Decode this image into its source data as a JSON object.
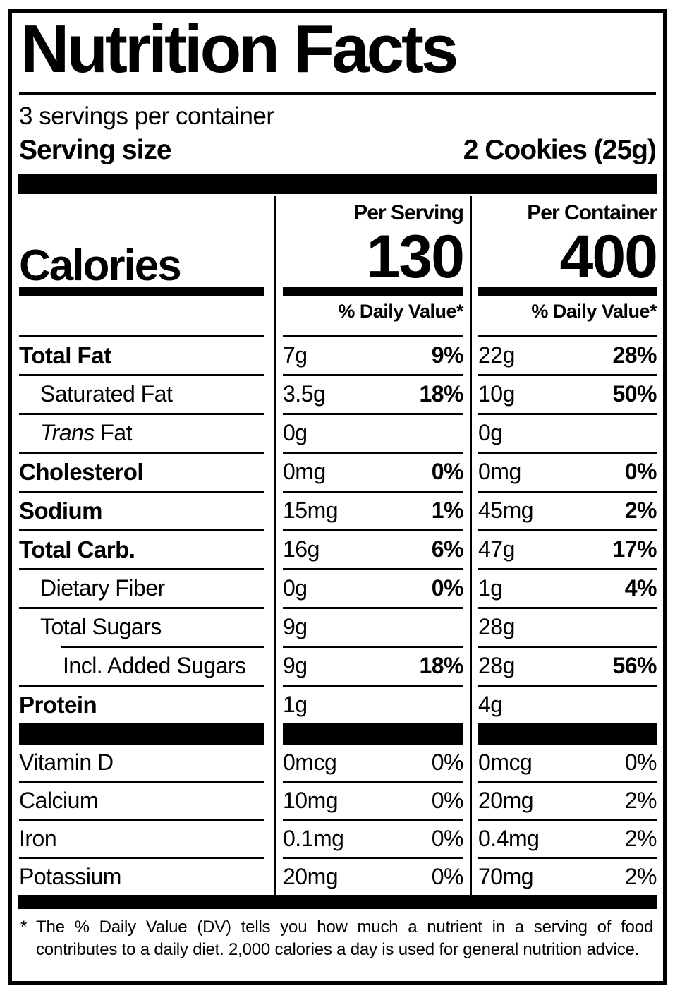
{
  "title": "Nutrition Facts",
  "serving_info": {
    "servings_per_container": "3 servings per container",
    "serving_size_label": "Serving size",
    "serving_size_value": "2 Cookies (25g)"
  },
  "calories_section": {
    "label": "Calories",
    "per_serving_header": "Per Serving",
    "per_container_header": "Per Container",
    "per_serving_calories": "130",
    "per_container_calories": "400",
    "daily_value_header": "% Daily Value*"
  },
  "nutrients": [
    {
      "name": "Total Fat",
      "bold": true,
      "indent": 0,
      "per_serving_amount": "7g",
      "per_serving_dv": "9%",
      "per_container_amount": "22g",
      "per_container_dv": "28%"
    },
    {
      "name": "Saturated Fat",
      "bold": false,
      "indent": 1,
      "per_serving_amount": "3.5g",
      "per_serving_dv": "18%",
      "per_container_amount": "10g",
      "per_container_dv": "50%"
    },
    {
      "name": "Fat",
      "italic_prefix": "Trans",
      "bold": false,
      "indent": 1,
      "per_serving_amount": "0g",
      "per_serving_dv": "",
      "per_container_amount": "0g",
      "per_container_dv": ""
    },
    {
      "name": "Cholesterol",
      "bold": true,
      "indent": 0,
      "per_serving_amount": "0mg",
      "per_serving_dv": "0%",
      "per_container_amount": "0mg",
      "per_container_dv": "0%"
    },
    {
      "name": "Sodium",
      "bold": true,
      "indent": 0,
      "per_serving_amount": "15mg",
      "per_serving_dv": "1%",
      "per_container_amount": "45mg",
      "per_container_dv": "2%"
    },
    {
      "name": "Total Carb.",
      "bold": true,
      "indent": 0,
      "per_serving_amount": "16g",
      "per_serving_dv": "6%",
      "per_container_amount": "47g",
      "per_container_dv": "17%"
    },
    {
      "name": "Dietary Fiber",
      "bold": false,
      "indent": 1,
      "per_serving_amount": "0g",
      "per_serving_dv": "0%",
      "per_container_amount": "1g",
      "per_container_dv": "4%"
    },
    {
      "name": "Total Sugars",
      "bold": false,
      "indent": 1,
      "per_serving_amount": "9g",
      "per_serving_dv": "",
      "per_container_amount": "28g",
      "per_container_dv": "",
      "separator_after_indented": true
    },
    {
      "name": "Incl. Added Sugars",
      "bold": false,
      "indent": 2,
      "per_serving_amount": "9g",
      "per_serving_dv": "18%",
      "per_container_amount": "28g",
      "per_container_dv": "56%"
    },
    {
      "name": "Protein",
      "bold": true,
      "indent": 0,
      "per_serving_amount": "1g",
      "per_serving_dv": "",
      "per_container_amount": "4g",
      "per_container_dv": ""
    }
  ],
  "vitamins": [
    {
      "name": "Vitamin D",
      "per_serving_amount": "0mcg",
      "per_serving_dv": "0%",
      "per_container_amount": "0mcg",
      "per_container_dv": "0%"
    },
    {
      "name": "Calcium",
      "per_serving_amount": "10mg",
      "per_serving_dv": "0%",
      "per_container_amount": "20mg",
      "per_container_dv": "2%"
    },
    {
      "name": "Iron",
      "per_serving_amount": "0.1mg",
      "per_serving_dv": "0%",
      "per_container_amount": "0.4mg",
      "per_container_dv": "2%"
    },
    {
      "name": "Potassium",
      "per_serving_amount": "20mg",
      "per_serving_dv": "0%",
      "per_container_amount": "70mg",
      "per_container_dv": "2%"
    }
  ],
  "footnote": {
    "marker": "*",
    "text": "The % Daily Value (DV) tells you how much a nutrient in a serving of food contributes to a daily diet. 2,000 calories a day is used for general nutrition advice."
  }
}
